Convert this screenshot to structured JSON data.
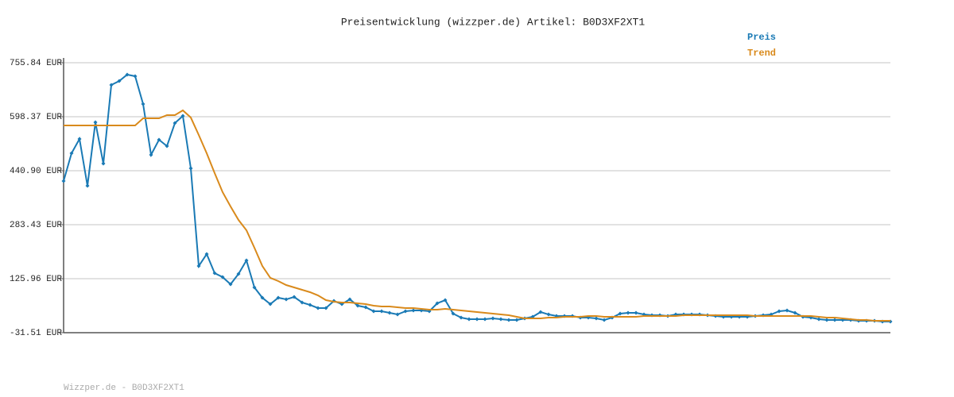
{
  "chart_data": {
    "type": "line",
    "title": "Preisentwicklung (wizzper.de) Artikel: B0D3XF2XT1",
    "footer": "Wizzper.de - B0D3XF2XT1",
    "ylim": [
      -31.51,
      755.84
    ],
    "yticks": [
      {
        "value": -31.51,
        "label": "-31.51 EUR"
      },
      {
        "value": 125.96,
        "label": "125.96 EUR"
      },
      {
        "value": 283.43,
        "label": "283.43 EUR"
      },
      {
        "value": 440.9,
        "label": "440.90 EUR"
      },
      {
        "value": 598.37,
        "label": "598.37 EUR"
      },
      {
        "value": 755.84,
        "label": "755.84 EUR"
      }
    ],
    "grid": true,
    "series": [
      {
        "name": "Preis",
        "color": "#1a7ab5",
        "markers": true,
        "values": [
          410.8,
          491.8,
          533.5,
          396.9,
          582.1,
          461.7,
          691.0,
          702.6,
          721.1,
          716.5,
          635.4,
          487.2,
          531.2,
          512.7,
          579.8,
          600.7,
          447.8,
          163.0,
          197.7,
          142.2,
          130.6,
          109.8,
          139.9,
          179.2,
          100.5,
          70.4,
          51.8,
          70.4,
          65.7,
          72.7,
          56.5,
          49.5,
          40.3,
          40.3,
          61.1,
          51.8,
          65.7,
          47.2,
          42.6,
          31.0,
          31.0,
          26.4,
          21.7,
          31.0,
          33.3,
          33.3,
          31.0,
          54.2,
          63.4,
          24.1,
          12.5,
          7.9,
          7.9,
          7.9,
          10.2,
          7.9,
          5.5,
          5.5,
          10.2,
          14.8,
          28.7,
          21.7,
          17.1,
          17.1,
          17.1,
          12.5,
          12.5,
          10.2,
          5.5,
          12.5,
          24.1,
          26.4,
          26.4,
          21.7,
          19.4,
          19.4,
          17.1,
          21.7,
          21.7,
          21.7,
          21.7,
          19.4,
          17.1,
          14.8,
          14.8,
          14.8,
          14.8,
          17.1,
          19.4,
          21.7,
          31.0,
          33.3,
          26.4,
          14.8,
          12.5,
          7.9,
          5.5,
          5.5,
          5.5,
          5.5,
          3.2,
          3.2,
          3.2,
          0.9,
          0.9
        ]
      },
      {
        "name": "Trend",
        "color": "#d98a1c",
        "markers": false,
        "values": [
          572.9,
          572.9,
          572.9,
          572.9,
          572.9,
          572.9,
          572.9,
          572.9,
          572.9,
          572.9,
          593.7,
          593.7,
          593.7,
          603.0,
          603.0,
          616.9,
          596.0,
          545.1,
          491.8,
          433.9,
          378.4,
          336.7,
          297.3,
          267.2,
          216.3,
          163.0,
          128.3,
          119.0,
          107.4,
          100.5,
          93.5,
          86.6,
          77.3,
          63.4,
          58.8,
          56.5,
          56.5,
          54.2,
          51.8,
          47.2,
          44.9,
          44.9,
          42.6,
          40.3,
          40.3,
          38.0,
          35.6,
          35.6,
          38.0,
          35.6,
          33.3,
          31.0,
          28.7,
          26.4,
          24.1,
          21.7,
          19.4,
          14.8,
          10.2,
          10.2,
          10.2,
          12.5,
          12.5,
          14.8,
          14.8,
          14.8,
          17.1,
          17.1,
          14.8,
          14.8,
          14.8,
          14.8,
          14.8,
          17.1,
          17.1,
          17.1,
          17.1,
          17.1,
          19.4,
          19.4,
          19.4,
          19.4,
          19.4,
          19.4,
          19.4,
          19.4,
          19.4,
          17.1,
          17.1,
          17.1,
          17.1,
          17.1,
          17.1,
          17.1,
          17.1,
          14.8,
          12.5,
          12.5,
          10.2,
          7.9,
          5.5,
          5.5,
          3.2,
          3.2,
          3.2
        ]
      }
    ]
  }
}
